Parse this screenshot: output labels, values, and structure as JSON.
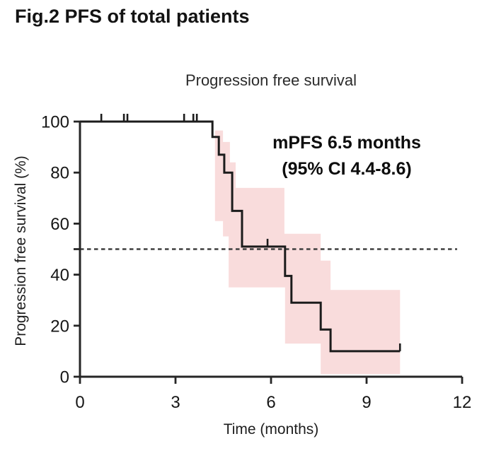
{
  "figure": {
    "title": "Fig.2 PFS of total patients"
  },
  "chart_data": {
    "type": "line",
    "subtype": "kaplan-meier-step",
    "title": "Progression free survival",
    "xlabel": "Time (months)",
    "ylabel": "Progression free survival (%)",
    "xlim": [
      0,
      12
    ],
    "xticks": [
      0,
      3,
      6,
      9,
      12
    ],
    "ylim": [
      0,
      100
    ],
    "yticks": [
      0,
      20,
      40,
      60,
      80,
      100
    ],
    "unlabeled_ytick": 50,
    "grid": "off",
    "legend": "none",
    "annotation": {
      "line1": "mPFS 6.5 months",
      "line2": "(95% CI 4.4-8.6)"
    },
    "median_reference_line": {
      "y": 50,
      "style": "dashed"
    },
    "km_steps": [
      [
        0,
        100
      ],
      [
        4.16,
        94
      ],
      [
        4.36,
        87
      ],
      [
        4.53,
        80
      ],
      [
        4.78,
        65
      ],
      [
        5.09,
        51
      ],
      [
        6.44,
        39.5
      ],
      [
        6.64,
        29
      ],
      [
        7.56,
        18.5
      ],
      [
        7.87,
        10
      ]
    ],
    "curve_end_time": 10.05,
    "censor_marks": [
      [
        0.67,
        100
      ],
      [
        1.38,
        100
      ],
      [
        1.49,
        100
      ],
      [
        3.27,
        100
      ],
      [
        3.56,
        100
      ],
      [
        3.67,
        100
      ],
      [
        5.89,
        51
      ],
      [
        10.05,
        10
      ]
    ],
    "ci_band": {
      "start_time": 4.24,
      "end_time": 10.05,
      "upper": [
        [
          4.24,
          96.5
        ],
        [
          4.49,
          92
        ],
        [
          4.71,
          84
        ],
        [
          4.89,
          74
        ],
        [
          6.42,
          56
        ],
        [
          7.56,
          45.5
        ],
        [
          7.87,
          34
        ]
      ],
      "lower": [
        [
          4.24,
          61
        ],
        [
          4.49,
          55
        ],
        [
          4.67,
          35
        ],
        [
          6.44,
          13
        ],
        [
          7.56,
          1
        ]
      ]
    },
    "colors": {
      "curve": "#1c1c1c",
      "ci_fill": "#f9dcdc",
      "dashed_line": "#3f3f3f",
      "axis": "#262626"
    }
  }
}
